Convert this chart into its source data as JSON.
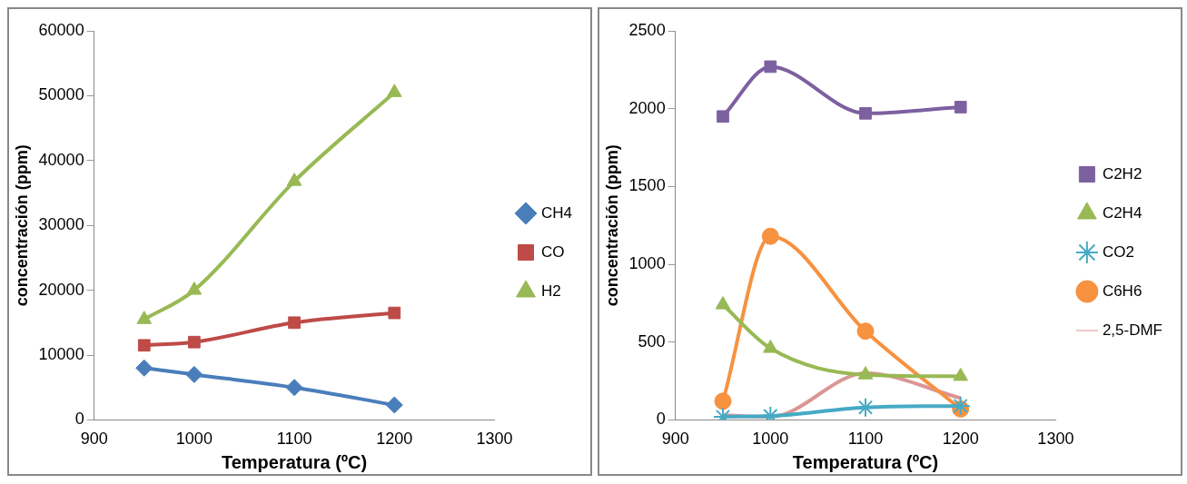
{
  "chart_data": [
    {
      "type": "line",
      "xlabel": "Temperatura (ºC)",
      "ylabel": "concentración (ppm)",
      "x": [
        950,
        1000,
        1100,
        1200
      ],
      "xlim": [
        900,
        1300
      ],
      "xticks": [
        900,
        1000,
        1100,
        1200,
        1300
      ],
      "ylim": [
        0,
        60000
      ],
      "yticks": [
        0,
        10000,
        20000,
        30000,
        40000,
        50000,
        60000
      ],
      "legend": "right",
      "grid": false,
      "series": [
        {
          "name": "CH4",
          "color": "#4a7ebb",
          "marker": "diamond",
          "values": [
            8000,
            7000,
            5000,
            2300
          ]
        },
        {
          "name": "CO",
          "color": "#be4b48",
          "marker": "square",
          "values": [
            11500,
            12000,
            15000,
            16500
          ]
        },
        {
          "name": "H2",
          "color": "#98b954",
          "marker": "triangle",
          "values": [
            15500,
            20000,
            36800,
            50500
          ]
        }
      ]
    },
    {
      "type": "line",
      "xlabel": "Temperatura (ºC)",
      "ylabel": "concentración (ppm)",
      "x": [
        950,
        1000,
        1100,
        1200
      ],
      "xlim": [
        900,
        1300
      ],
      "xticks": [
        900,
        1000,
        1100,
        1200,
        1300
      ],
      "ylim": [
        0,
        2500
      ],
      "yticks": [
        0,
        500,
        1000,
        1500,
        2000,
        2500
      ],
      "legend": "right",
      "grid": false,
      "series": [
        {
          "name": "C2H2",
          "color": "#7d60a0",
          "marker": "square",
          "values": [
            1950,
            2270,
            1970,
            2010
          ]
        },
        {
          "name": "C2H4",
          "color": "#98b954",
          "marker": "triangle",
          "values": [
            740,
            460,
            290,
            280
          ]
        },
        {
          "name": "CO2",
          "color": "#46aac5",
          "marker": "cross",
          "values": [
            20,
            25,
            80,
            90
          ]
        },
        {
          "name": "C6H6",
          "color": "#f69240",
          "marker": "circle",
          "values": [
            120,
            1180,
            570,
            70
          ]
        },
        {
          "name": "2,5-DMF",
          "color": "#da9694",
          "marker": "none",
          "values": [
            30,
            20,
            300,
            140
          ]
        }
      ]
    }
  ]
}
